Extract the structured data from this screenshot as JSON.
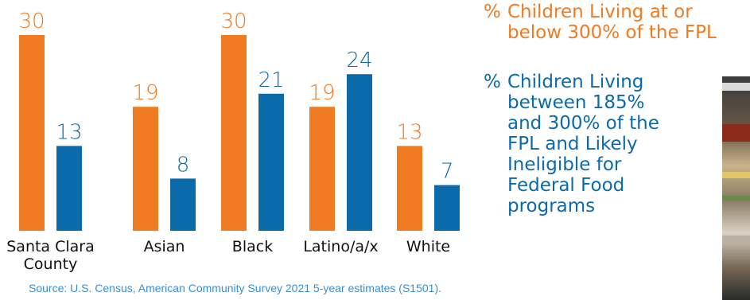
{
  "chart_data": {
    "type": "bar",
    "categories": [
      "Santa Clara County",
      "Asian",
      "Black",
      "Latino/a/x",
      "White"
    ],
    "category_lines": [
      [
        "Santa Clara",
        "County"
      ],
      [
        "Asian"
      ],
      [
        "Black"
      ],
      [
        "Latino/a/x"
      ],
      [
        "White"
      ]
    ],
    "series": [
      {
        "name": "% Children Living at or below 300% of the FPL",
        "color": "#f07b22",
        "values": [
          30,
          19,
          30,
          19,
          13
        ]
      },
      {
        "name": "% Children Living between 185% and 300% of the FPL and Likely Ineligible for Federal Food programs",
        "color": "#0a6aaa",
        "values": [
          13,
          8,
          21,
          24,
          7
        ]
      }
    ],
    "ylim": [
      0,
      30
    ],
    "grid": false,
    "legend_position": "right",
    "legend": [
      {
        "marker": "%",
        "lines": [
          "Children Living at or",
          "below 300% of the FPL"
        ],
        "color": "#f07b22"
      },
      {
        "marker": "%",
        "lines": [
          "Children Living",
          "between 185%",
          "and 300% of the",
          "FPL and Likely",
          "Ineligible for",
          "Federal Food",
          "programs"
        ],
        "color": "#0a6aaa"
      }
    ]
  },
  "source": "Source: U.S. Census, American Community Survey 2021 5-year estimates (S1501).",
  "photo": {
    "description_icon": "grocery-photo"
  }
}
